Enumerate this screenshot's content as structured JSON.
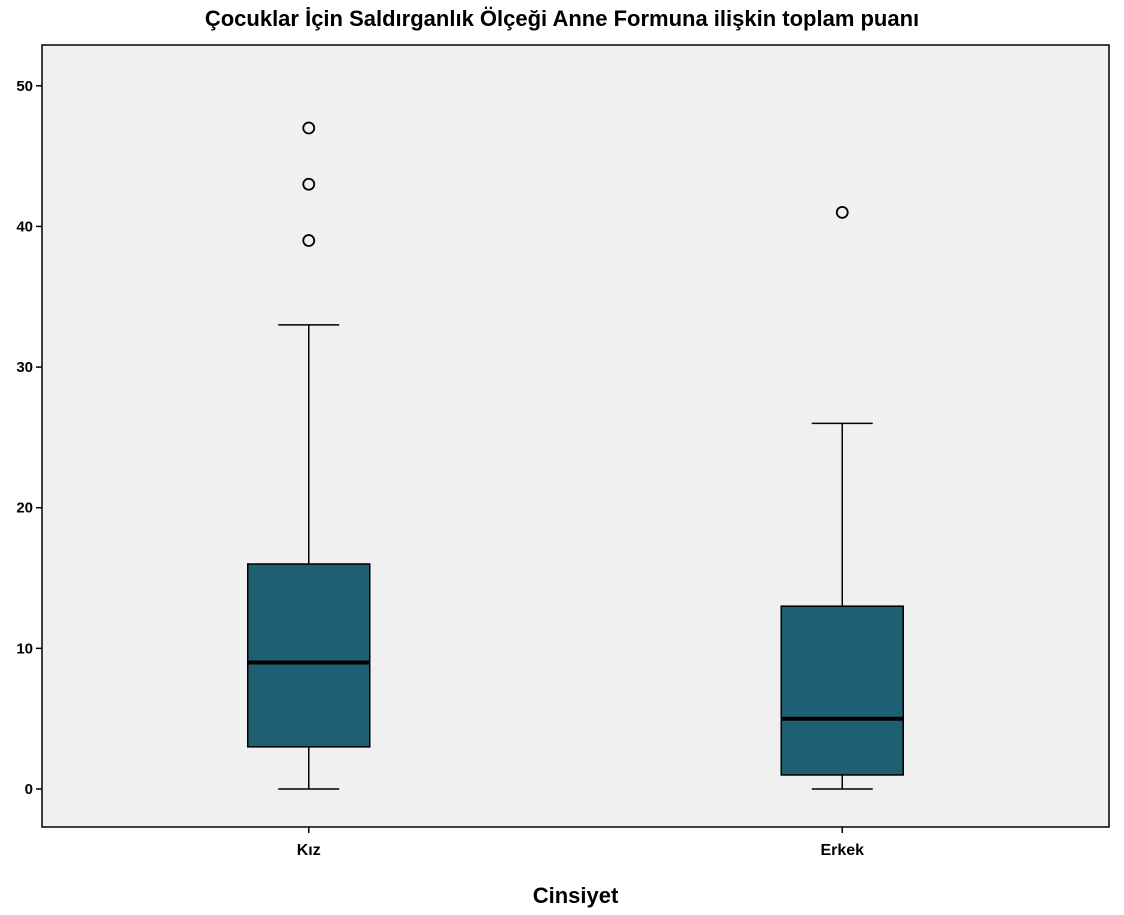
{
  "chart_data": {
    "type": "boxplot",
    "title": "Çocuklar İçin Saldırganlık Ölçeği Anne Formuna ilişkin toplam puanı",
    "xlabel": "Cinsiyet",
    "ylabel": "",
    "ylim": [
      -2.7,
      52.9
    ],
    "yticks": [
      0,
      10,
      20,
      30,
      40,
      50
    ],
    "grid": false,
    "box_color": "#1f5f74",
    "plot_background": "#f0f0f0",
    "categories": [
      "Kız",
      "Erkek"
    ],
    "boxes": [
      {
        "category": "Kız",
        "whisker_low": 0,
        "q1": 3,
        "median": 9,
        "q3": 16,
        "whisker_high": 33,
        "outliers": [
          39,
          43,
          47
        ]
      },
      {
        "category": "Erkek",
        "whisker_low": 0,
        "q1": 1,
        "median": 5,
        "q3": 13,
        "whisker_high": 26,
        "outliers": [
          41
        ]
      }
    ]
  }
}
